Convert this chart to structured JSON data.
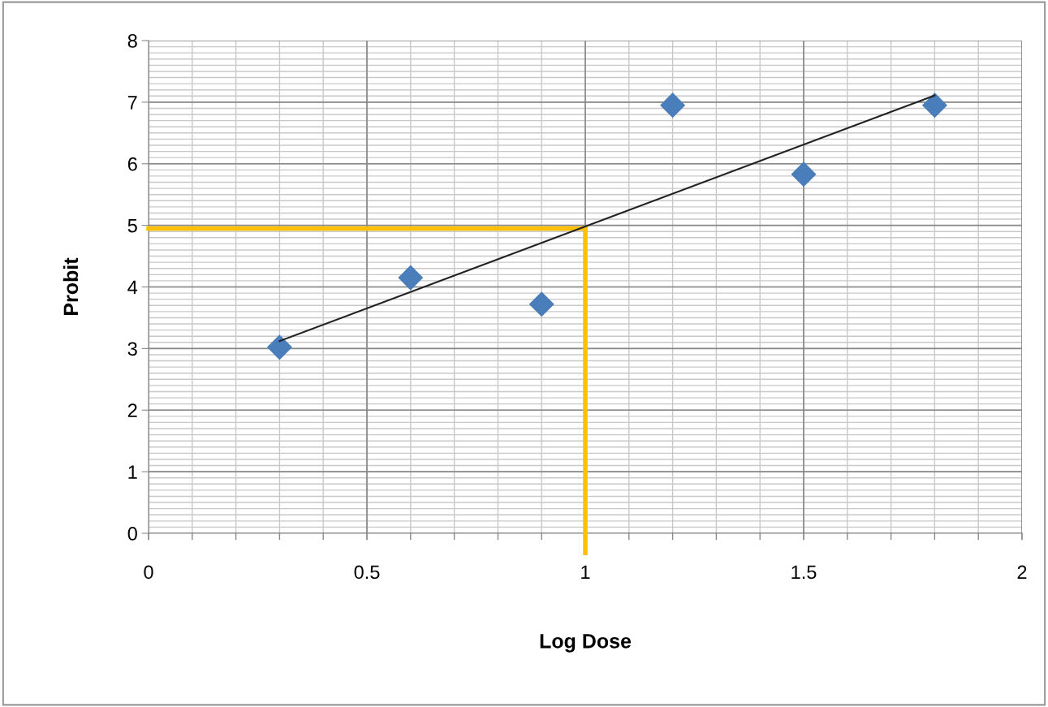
{
  "chart_data": {
    "type": "scatter",
    "xlabel": "Log Dose",
    "ylabel": "Probit",
    "series": [
      {
        "color": "#4a7ebb",
        "marker": "diamond",
        "x": [
          0.3,
          0.6,
          0.9,
          1.2,
          1.5,
          1.8
        ],
        "values": [
          3.02,
          4.15,
          3.72,
          6.95,
          5.83,
          6.95
        ]
      },
      {
        "type": "line",
        "color": "#222222",
        "marker": "none",
        "x": [
          0.3,
          1.8
        ],
        "values": [
          3.12,
          7.11
        ]
      }
    ],
    "xlim": [
      0,
      2
    ],
    "ylim": [
      0,
      8
    ],
    "xticks": [
      0,
      0.5,
      1,
      1.5,
      2
    ],
    "yticks": [
      0,
      1,
      2,
      3,
      4,
      5,
      6,
      7,
      8
    ],
    "grid": true,
    "ref_lines": [
      {
        "axis": "y",
        "value": 4.95,
        "label": null,
        "color": "#ffc000"
      },
      {
        "axis": "x",
        "value": 1,
        "label": null,
        "color": "#ffc000"
      }
    ]
  }
}
